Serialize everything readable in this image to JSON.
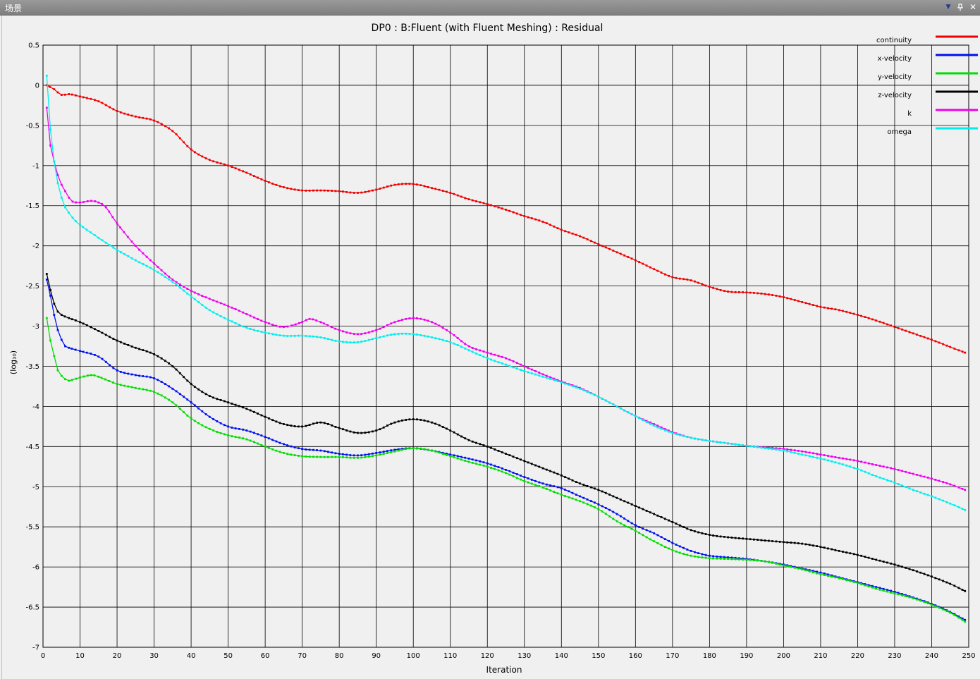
{
  "window": {
    "title": "场景",
    "menu_icon": "triangle-down",
    "pin_icon": "pin",
    "close_icon": "close"
  },
  "chart_data": {
    "type": "line",
    "title": "DP0 : B:Fluent (with Fluent Meshing) : Residual",
    "xlabel": "Iteration",
    "ylabel": "(log₁₀)",
    "xlim": [
      0,
      250
    ],
    "ylim": [
      -7,
      0.5
    ],
    "xticks": [
      0,
      10,
      20,
      30,
      40,
      50,
      60,
      70,
      80,
      90,
      100,
      110,
      120,
      130,
      140,
      150,
      160,
      170,
      180,
      190,
      200,
      210,
      220,
      230,
      240,
      250
    ],
    "yticks": [
      0.5,
      0,
      -0.5,
      -1,
      -1.5,
      -2,
      -2.5,
      -3,
      -3.5,
      -4,
      -4.5,
      -5,
      -5.5,
      -6,
      -6.5,
      -7
    ],
    "grid": true,
    "legend_position": "top-right",
    "series": [
      {
        "name": "continuity",
        "color": "#ee0000",
        "x": [
          1,
          3,
          5,
          7,
          10,
          15,
          20,
          25,
          30,
          35,
          40,
          45,
          50,
          55,
          60,
          65,
          70,
          75,
          80,
          85,
          90,
          95,
          100,
          105,
          110,
          115,
          120,
          125,
          130,
          135,
          140,
          145,
          150,
          155,
          160,
          165,
          170,
          175,
          180,
          185,
          190,
          195,
          200,
          205,
          210,
          215,
          220,
          225,
          230,
          235,
          240,
          245,
          249
        ],
        "y": [
          0,
          -0.05,
          -0.12,
          -0.11,
          -0.14,
          -0.2,
          -0.32,
          -0.39,
          -0.44,
          -0.57,
          -0.8,
          -0.93,
          -1.0,
          -1.09,
          -1.19,
          -1.27,
          -1.31,
          -1.31,
          -1.32,
          -1.34,
          -1.3,
          -1.24,
          -1.23,
          -1.28,
          -1.34,
          -1.42,
          -1.48,
          -1.55,
          -1.63,
          -1.7,
          -1.8,
          -1.88,
          -1.98,
          -2.08,
          -2.18,
          -2.29,
          -2.39,
          -2.43,
          -2.51,
          -2.57,
          -2.58,
          -2.6,
          -2.64,
          -2.7,
          -2.76,
          -2.8,
          -2.86,
          -2.93,
          -3.01,
          -3.09,
          -3.17,
          -3.26,
          -3.33
        ]
      },
      {
        "name": "x-velocity",
        "color": "#0010ee",
        "x": [
          1,
          2,
          3,
          4,
          5,
          6,
          7,
          10,
          15,
          20,
          25,
          30,
          35,
          40,
          45,
          50,
          55,
          60,
          65,
          70,
          75,
          80,
          85,
          90,
          95,
          100,
          105,
          110,
          115,
          120,
          125,
          130,
          135,
          140,
          145,
          150,
          155,
          160,
          165,
          170,
          175,
          180,
          185,
          190,
          195,
          200,
          205,
          210,
          215,
          220,
          225,
          230,
          235,
          240,
          245,
          249
        ],
        "y": [
          -2.42,
          -2.62,
          -2.86,
          -3.05,
          -3.17,
          -3.25,
          -3.27,
          -3.31,
          -3.38,
          -3.55,
          -3.61,
          -3.65,
          -3.78,
          -3.95,
          -4.13,
          -4.25,
          -4.3,
          -4.38,
          -4.47,
          -4.53,
          -4.55,
          -4.59,
          -4.61,
          -4.58,
          -4.54,
          -4.52,
          -4.55,
          -4.6,
          -4.65,
          -4.71,
          -4.79,
          -4.88,
          -4.96,
          -5.02,
          -5.12,
          -5.22,
          -5.34,
          -5.48,
          -5.58,
          -5.7,
          -5.8,
          -5.86,
          -5.88,
          -5.9,
          -5.93,
          -5.97,
          -6.02,
          -6.07,
          -6.13,
          -6.19,
          -6.25,
          -6.31,
          -6.38,
          -6.46,
          -6.56,
          -6.66
        ]
      },
      {
        "name": "y-velocity",
        "color": "#00dd00",
        "x": [
          1,
          2,
          3,
          4,
          5,
          6,
          7,
          10,
          13,
          15,
          20,
          25,
          30,
          35,
          40,
          45,
          50,
          55,
          60,
          65,
          70,
          75,
          80,
          85,
          90,
          95,
          100,
          105,
          110,
          115,
          120,
          125,
          130,
          135,
          140,
          145,
          150,
          155,
          160,
          165,
          170,
          175,
          180,
          185,
          190,
          195,
          200,
          205,
          210,
          215,
          220,
          225,
          230,
          235,
          240,
          245,
          249
        ],
        "y": [
          -2.9,
          -3.18,
          -3.37,
          -3.55,
          -3.62,
          -3.66,
          -3.68,
          -3.64,
          -3.61,
          -3.63,
          -3.72,
          -3.77,
          -3.82,
          -3.95,
          -4.15,
          -4.28,
          -4.36,
          -4.41,
          -4.5,
          -4.58,
          -4.62,
          -4.63,
          -4.63,
          -4.64,
          -4.61,
          -4.56,
          -4.52,
          -4.55,
          -4.62,
          -4.69,
          -4.75,
          -4.83,
          -4.93,
          -5.01,
          -5.1,
          -5.18,
          -5.28,
          -5.43,
          -5.55,
          -5.68,
          -5.79,
          -5.86,
          -5.89,
          -5.9,
          -5.91,
          -5.93,
          -5.98,
          -6.03,
          -6.09,
          -6.14,
          -6.2,
          -6.27,
          -6.33,
          -6.39,
          -6.47,
          -6.57,
          -6.68
        ]
      },
      {
        "name": "z-velocity",
        "color": "#000000",
        "x": [
          1,
          2,
          3,
          4,
          5,
          7,
          10,
          15,
          20,
          25,
          30,
          35,
          40,
          45,
          50,
          55,
          60,
          65,
          70,
          75,
          80,
          85,
          90,
          95,
          100,
          105,
          110,
          115,
          120,
          125,
          130,
          135,
          140,
          145,
          150,
          155,
          160,
          165,
          170,
          175,
          180,
          185,
          190,
          195,
          200,
          205,
          210,
          215,
          220,
          225,
          230,
          235,
          240,
          245,
          249
        ],
        "y": [
          -2.35,
          -2.55,
          -2.72,
          -2.82,
          -2.86,
          -2.9,
          -2.95,
          -3.06,
          -3.18,
          -3.27,
          -3.35,
          -3.5,
          -3.72,
          -3.87,
          -3.95,
          -4.03,
          -4.13,
          -4.22,
          -4.25,
          -4.2,
          -4.27,
          -4.33,
          -4.3,
          -4.2,
          -4.16,
          -4.2,
          -4.3,
          -4.42,
          -4.5,
          -4.59,
          -4.68,
          -4.77,
          -4.86,
          -4.96,
          -5.04,
          -5.14,
          -5.24,
          -5.34,
          -5.44,
          -5.54,
          -5.6,
          -5.63,
          -5.65,
          -5.67,
          -5.69,
          -5.71,
          -5.75,
          -5.8,
          -5.85,
          -5.91,
          -5.97,
          -6.04,
          -6.12,
          -6.21,
          -6.3
        ]
      },
      {
        "name": "k",
        "color": "#ee00ee",
        "x": [
          1,
          2,
          3,
          4,
          5,
          6,
          7,
          8,
          10,
          13,
          15,
          17,
          20,
          25,
          30,
          35,
          40,
          45,
          50,
          55,
          60,
          65,
          70,
          72,
          75,
          80,
          85,
          90,
          95,
          100,
          105,
          110,
          115,
          120,
          125,
          130,
          135,
          140,
          145,
          150,
          155,
          160,
          165,
          170,
          175,
          180,
          185,
          190,
          195,
          200,
          205,
          210,
          215,
          220,
          225,
          230,
          235,
          240,
          245,
          249
        ],
        "y": [
          -0.28,
          -0.75,
          -0.95,
          -1.12,
          -1.24,
          -1.32,
          -1.4,
          -1.45,
          -1.46,
          -1.44,
          -1.46,
          -1.52,
          -1.72,
          -2.0,
          -2.22,
          -2.42,
          -2.56,
          -2.66,
          -2.75,
          -2.85,
          -2.95,
          -3.01,
          -2.95,
          -2.91,
          -2.95,
          -3.05,
          -3.1,
          -3.05,
          -2.95,
          -2.9,
          -2.95,
          -3.08,
          -3.25,
          -3.33,
          -3.4,
          -3.5,
          -3.6,
          -3.69,
          -3.77,
          -3.88,
          -4.0,
          -4.12,
          -4.22,
          -4.32,
          -4.39,
          -4.43,
          -4.46,
          -4.49,
          -4.51,
          -4.53,
          -4.56,
          -4.6,
          -4.64,
          -4.68,
          -4.73,
          -4.78,
          -4.84,
          -4.9,
          -4.97,
          -5.04
        ]
      },
      {
        "name": "omega",
        "color": "#00eeee",
        "x": [
          1,
          2,
          3,
          4,
          5,
          6,
          8,
          10,
          15,
          20,
          25,
          30,
          35,
          40,
          45,
          50,
          55,
          60,
          65,
          70,
          75,
          80,
          85,
          90,
          95,
          100,
          105,
          110,
          115,
          120,
          125,
          130,
          135,
          140,
          145,
          150,
          155,
          160,
          165,
          170,
          175,
          180,
          185,
          190,
          195,
          200,
          205,
          210,
          215,
          220,
          225,
          230,
          235,
          240,
          245,
          249
        ],
        "y": [
          0.12,
          -0.55,
          -0.95,
          -1.22,
          -1.4,
          -1.52,
          -1.65,
          -1.74,
          -1.9,
          -2.05,
          -2.18,
          -2.3,
          -2.45,
          -2.63,
          -2.8,
          -2.92,
          -3.02,
          -3.08,
          -3.12,
          -3.12,
          -3.14,
          -3.19,
          -3.2,
          -3.15,
          -3.1,
          -3.1,
          -3.14,
          -3.2,
          -3.3,
          -3.4,
          -3.48,
          -3.56,
          -3.63,
          -3.7,
          -3.78,
          -3.88,
          -4.0,
          -4.12,
          -4.24,
          -4.33,
          -4.39,
          -4.43,
          -4.46,
          -4.49,
          -4.52,
          -4.55,
          -4.6,
          -4.65,
          -4.71,
          -4.78,
          -4.87,
          -4.95,
          -5.04,
          -5.12,
          -5.21,
          -5.29
        ]
      }
    ]
  }
}
